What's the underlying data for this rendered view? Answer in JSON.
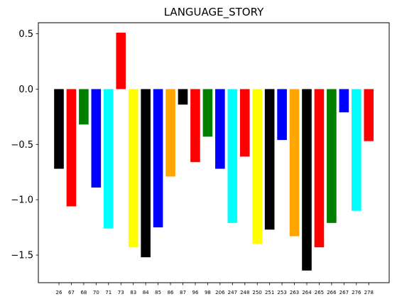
{
  "chart_data": {
    "type": "bar",
    "title": "LANGUAGE_STORY",
    "xlabel": "",
    "ylabel": "",
    "ylim": [
      -1.75,
      0.6
    ],
    "yticks": [
      -1.5,
      -1.0,
      -0.5,
      0.0,
      0.5
    ],
    "ytick_labels": [
      "−1.5",
      "−1.0",
      "−0.5",
      "0.0",
      "0.5"
    ],
    "grid": false,
    "categories": [
      "26",
      "67",
      "68",
      "70",
      "71",
      "73",
      "83",
      "84",
      "85",
      "86",
      "87",
      "96",
      "98",
      "206",
      "247",
      "248",
      "250",
      "251",
      "253",
      "263",
      "264",
      "265",
      "266",
      "267",
      "276",
      "278"
    ],
    "values": [
      -0.72,
      -1.06,
      -0.32,
      -0.89,
      -1.26,
      0.51,
      -1.43,
      -1.52,
      -1.25,
      -0.79,
      -0.14,
      -0.66,
      -0.43,
      -0.72,
      -1.21,
      -0.61,
      -1.4,
      -1.27,
      -0.46,
      -1.33,
      -1.64,
      -1.43,
      -1.21,
      -0.21,
      -1.1,
      -0.47
    ],
    "colors": [
      "#000000",
      "#ff0000",
      "#008000",
      "#0000ff",
      "#00ffff",
      "#ff0000",
      "#ffff00",
      "#000000",
      "#0000ff",
      "#ffa500",
      "#000000",
      "#ff0000",
      "#008000",
      "#0000ff",
      "#00ffff",
      "#ff0000",
      "#ffff00",
      "#000000",
      "#0000ff",
      "#ffa500",
      "#000000",
      "#ff0000",
      "#008000",
      "#0000ff",
      "#00ffff",
      "#ff0000"
    ]
  }
}
